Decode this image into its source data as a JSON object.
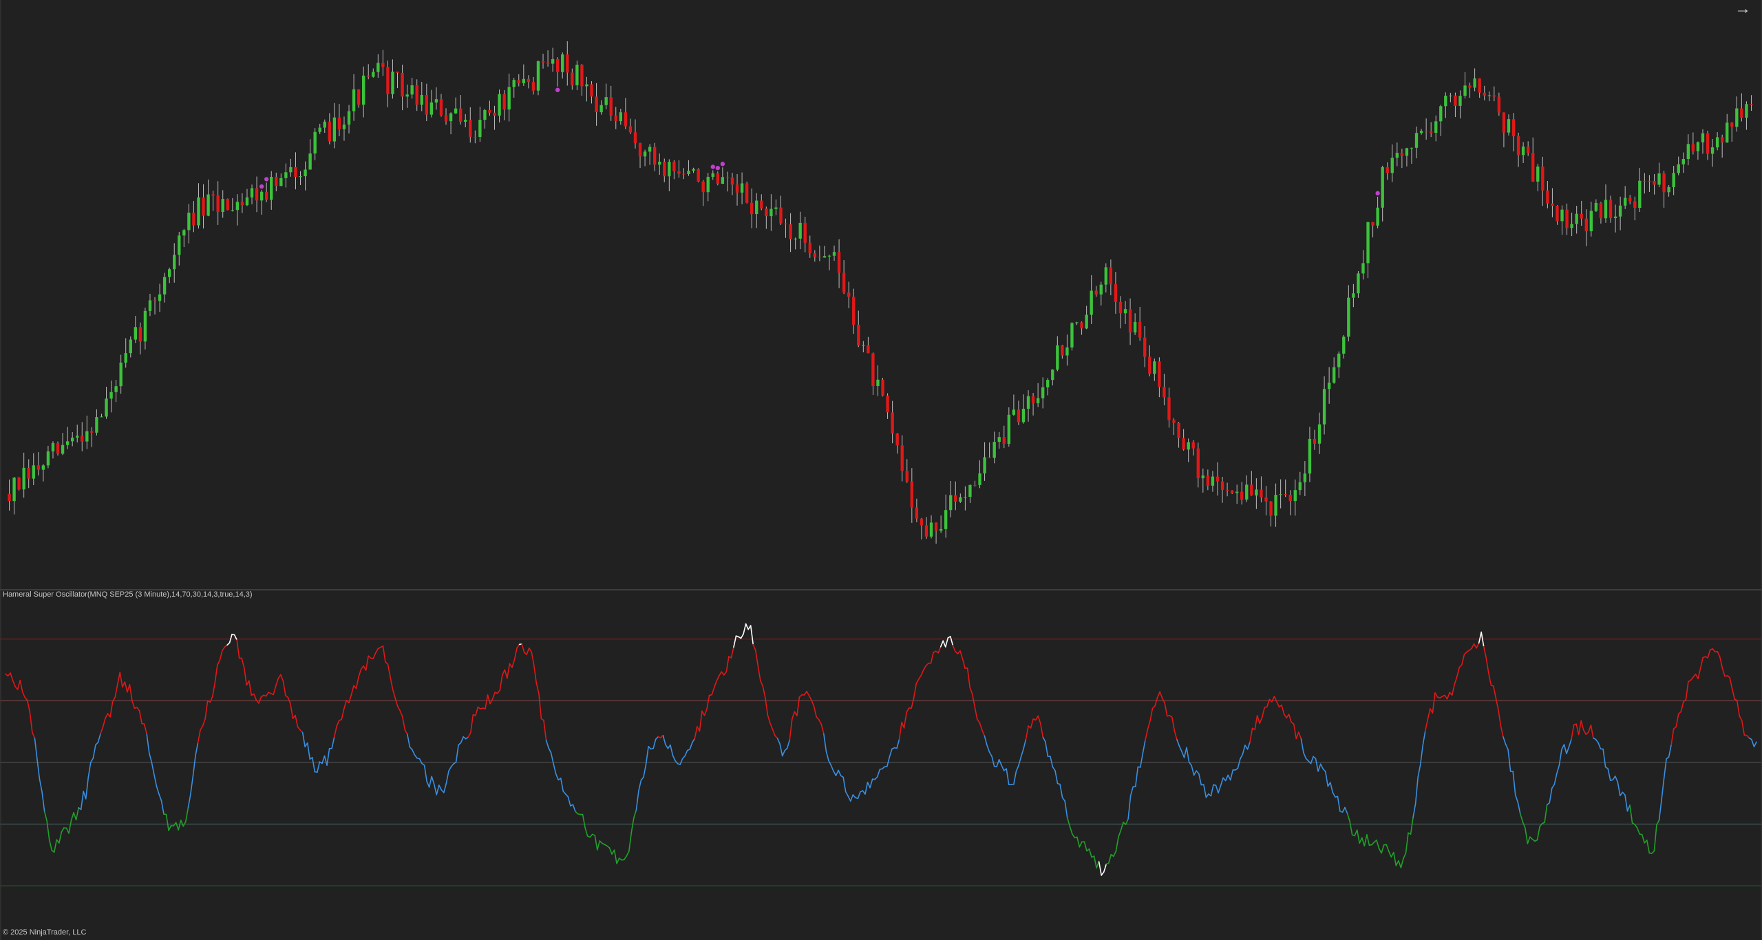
{
  "panels": {
    "price": {
      "bar_count": 360,
      "seed": 7,
      "price_path": [
        -0.45,
        -0.2,
        0.45,
        0.55,
        0.9,
        0.72,
        0.95,
        0.62,
        0.5,
        0.3,
        -0.6,
        -0.2,
        0.25,
        -0.4,
        -0.5,
        0.58,
        0.9,
        0.4,
        0.55,
        0.8
      ],
      "signal_dot_indexes": [
        52,
        53,
        113,
        145,
        146,
        147,
        282
      ]
    },
    "indicator": {
      "label": "Hameral Super Oscillator(MNQ SEP25 (3 Minute),14,70,30,14,3,true,14,3)",
      "upper_extreme": 90,
      "upper_level": 70,
      "lower_level": 30,
      "lower_extreme": 10
    }
  },
  "nav": {
    "icon": "arrow-right-icon",
    "glyph": "→"
  },
  "footer": {
    "copyright": "© 2025 NinjaTrader, LLC"
  },
  "colors": {
    "background": "#212121",
    "up_candle": "#3cc23c",
    "down_candle": "#e01818",
    "wick": "#bdbdbd",
    "signal_dot": "#c040d0",
    "osc_overbought": "#e01818",
    "osc_neutral": "#3a8fe0",
    "osc_oversold": "#22a02a",
    "osc_extreme": "#ffffff"
  },
  "chart_data": {
    "type": "line",
    "title": "Hameral Super Oscillator(MNQ SEP25 (3 Minute),14,70,30,14,3,true,14,3)",
    "xlabel": "",
    "ylabel": "",
    "grid": false,
    "levels": [
      90,
      70,
      50,
      30,
      10
    ],
    "oscillator_path": [
      80,
      76,
      71,
      45,
      22,
      26,
      32,
      40,
      57,
      65,
      78,
      72,
      64,
      48,
      31,
      28,
      35,
      60,
      72,
      86,
      92,
      76,
      70,
      71,
      78,
      66,
      58,
      48,
      50,
      62,
      70,
      80,
      84,
      88,
      72,
      60,
      52,
      44,
      40,
      48,
      58,
      64,
      70,
      74,
      80,
      88,
      86,
      62,
      46,
      40,
      35,
      26,
      22,
      20,
      16,
      32,
      52,
      60,
      56,
      48,
      56,
      66,
      74,
      82,
      90,
      96,
      78,
      60,
      52,
      66,
      74,
      64,
      52,
      44,
      38,
      40,
      46,
      50,
      58,
      68,
      78,
      84,
      90,
      88,
      80,
      64,
      52,
      48,
      44,
      56,
      66,
      54,
      44,
      30,
      24,
      20,
      14,
      22,
      32,
      48,
      64,
      72,
      62,
      54,
      46,
      40,
      42,
      44,
      52,
      60,
      68,
      72,
      66,
      58,
      50,
      48,
      40,
      34,
      26,
      24,
      24,
      20,
      16,
      32,
      60,
      72,
      70,
      80,
      86,
      90,
      74,
      58,
      40,
      26,
      26,
      40,
      52,
      60,
      62,
      58,
      48,
      42,
      34,
      26,
      20,
      48,
      64,
      74,
      80,
      86,
      82,
      72,
      60,
      56
    ]
  }
}
